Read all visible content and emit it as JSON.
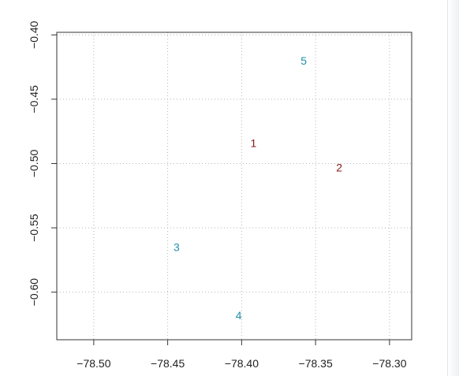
{
  "chart_data": {
    "type": "scatter",
    "title": "",
    "xlabel": "",
    "ylabel": "",
    "xlim": [
      -78.525,
      -78.285
    ],
    "ylim": [
      -0.637,
      -0.398
    ],
    "grid": true,
    "legend": "none",
    "x_ticks": [
      -78.5,
      -78.45,
      -78.4,
      -78.35,
      -78.3
    ],
    "x_tick_labels": [
      "−78.50",
      "−78.45",
      "−78.40",
      "−78.35",
      "−78.30"
    ],
    "y_ticks": [
      -0.4,
      -0.45,
      -0.5,
      -0.55,
      -0.6
    ],
    "y_tick_labels": [
      "−0.40",
      "−0.45",
      "−0.50",
      "−0.55",
      "−0.60"
    ],
    "points": [
      {
        "label": "1",
        "x": -78.392,
        "y": -0.484,
        "color": "#8b1a1a"
      },
      {
        "label": "2",
        "x": -78.334,
        "y": -0.503,
        "color": "#8b1a1a"
      },
      {
        "label": "3",
        "x": -78.444,
        "y": -0.565,
        "color": "#2190a8"
      },
      {
        "label": "4",
        "x": -78.402,
        "y": -0.618,
        "color": "#2190a8"
      },
      {
        "label": "5",
        "x": -78.358,
        "y": -0.42,
        "color": "#2190a8"
      }
    ]
  }
}
